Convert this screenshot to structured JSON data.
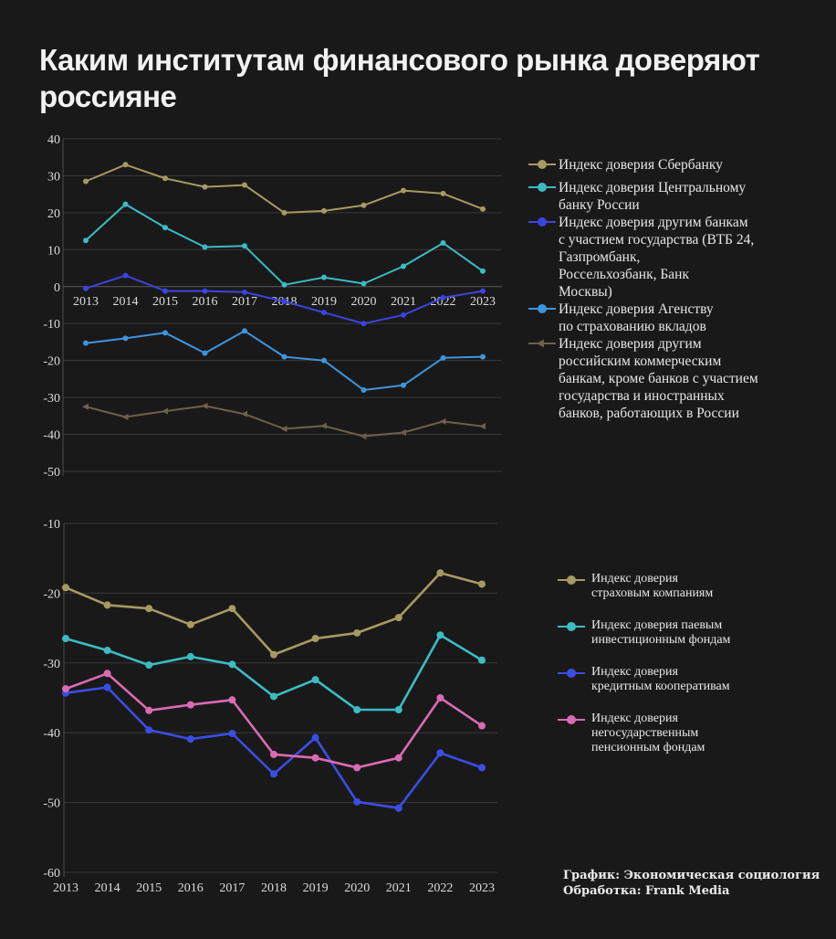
{
  "title": "Каким институтам финансового рынка доверяют россияне",
  "footer": {
    "source": "График: Экономическая социология",
    "processing": "Обработка: Frank Media"
  },
  "chart_data": [
    {
      "type": "line",
      "title": "",
      "xlabel": "",
      "ylabel": "",
      "x": [
        "2013",
        "2014",
        "2015",
        "2016",
        "2017",
        "2018",
        "2019",
        "2020",
        "2021",
        "2022",
        "2023"
      ],
      "ylim": [
        -50,
        40
      ],
      "yticks": [
        40,
        30,
        20,
        10,
        0,
        -10,
        -20,
        -30,
        -40,
        -50
      ],
      "grid": true,
      "legend_position": "right",
      "series": [
        {
          "name": "Индекс доверия Сбербанку",
          "color": "#a69a63",
          "marker": "circle",
          "values": [
            28.5,
            33,
            29.3,
            27,
            27.5,
            20,
            20.5,
            22,
            26,
            25.2,
            21
          ]
        },
        {
          "name": "Индекс доверия Центральному банку России",
          "color": "#3bbcc4",
          "marker": "circle",
          "values": [
            12.5,
            22.3,
            16,
            10.7,
            11,
            0.5,
            2.5,
            0.8,
            5.5,
            11.8,
            4.2
          ]
        },
        {
          "name": "Индекс доверия другим банкам с участием государства (ВТБ 24, Газпромбанк, Россельхозбанк, Банк Москвы)",
          "color": "#3a44e0",
          "marker": "circle",
          "values": [
            -0.5,
            3,
            -1.2,
            -1.2,
            -1.5,
            -4,
            -7,
            -10,
            -7.7,
            -3,
            -1.2
          ]
        },
        {
          "name": "Индекс доверия Агенству по страхованию вкладов",
          "color": "#3d95dc",
          "marker": "circle",
          "values": [
            -15.3,
            -14,
            -12.5,
            -18,
            -12,
            -19,
            -20,
            -28,
            -26.7,
            -19.3,
            -19
          ]
        },
        {
          "name": "Индекс доверия другим российским коммерческим банкам, кроме банков с участием государства и иностранных банков, работающих в России",
          "color": "#6b614a",
          "marker": "triangle",
          "values": [
            -32.5,
            -35.3,
            -33.7,
            -32.3,
            -34.5,
            -38.5,
            -37.7,
            -40.5,
            -39.5,
            -36.5,
            -37.8
          ]
        }
      ],
      "legend_lines": [
        [
          "Индекс доверия Сбербанку"
        ],
        [
          "Индекс доверия Центральному",
          "банку России"
        ],
        [
          "Индекс доверия другим банкам",
          "с участием государства (ВТБ 24,",
          "Газпромбанк,",
          "Россельхозбанк, Банк",
          "Москвы)"
        ],
        [
          "Индекс доверия Агенству",
          "по страхованию вкладов"
        ],
        [
          "Индекс доверия другим",
          "российским коммерческим",
          "банкам, кроме банков с участием",
          "государства и иностранных",
          "банков, работающих в России"
        ]
      ]
    },
    {
      "type": "line",
      "title": "",
      "xlabel": "",
      "ylabel": "",
      "x": [
        "2013",
        "2014",
        "2015",
        "2016",
        "2017",
        "2018",
        "2019",
        "2020",
        "2021",
        "2022",
        "2023"
      ],
      "ylim": [
        -60,
        -10
      ],
      "yticks": [
        -10,
        -20,
        -30,
        -40,
        -50,
        -60
      ],
      "grid": true,
      "legend_position": "right",
      "series": [
        {
          "name": "Индекс доверия страховым компаниям",
          "color": "#a69a63",
          "marker": "circle",
          "values": [
            -19.2,
            -21.7,
            -22.2,
            -24.5,
            -22.2,
            -28.8,
            -26.5,
            -25.7,
            -23.5,
            -17.1,
            -18.7
          ]
        },
        {
          "name": "Индекс доверия паевым инвестиционным фондам",
          "color": "#3bbcc4",
          "marker": "circle",
          "values": [
            -26.5,
            -28.2,
            -30.3,
            -29.1,
            -30.2,
            -34.8,
            -32.4,
            -36.7,
            -36.7,
            -26,
            -29.6
          ]
        },
        {
          "name": "Индекс доверия кредитным кооперативам",
          "color": "#3a4ee6",
          "marker": "circle",
          "values": [
            -34.3,
            -33.5,
            -39.6,
            -40.9,
            -40.1,
            -45.9,
            -40.7,
            -49.9,
            -50.8,
            -42.9,
            -45
          ]
        },
        {
          "name": "Индекс доверия негосударственным пенсионным фондам",
          "color": "#d96bb3",
          "marker": "circle",
          "values": [
            -33.7,
            -31.5,
            -36.8,
            -36,
            -35.3,
            -43.1,
            -43.6,
            -45,
            -43.6,
            -35,
            -39
          ]
        }
      ],
      "legend_lines": [
        [
          "Индекс доверия",
          "страховым компаниям"
        ],
        [
          "Индекс доверия паевым",
          "инвестиционным фондам"
        ],
        [
          "Индекс доверия",
          "кредитным кооперативам"
        ],
        [
          "Индекс доверия",
          "негосударственным",
          "пенсионным фондам"
        ]
      ]
    }
  ]
}
